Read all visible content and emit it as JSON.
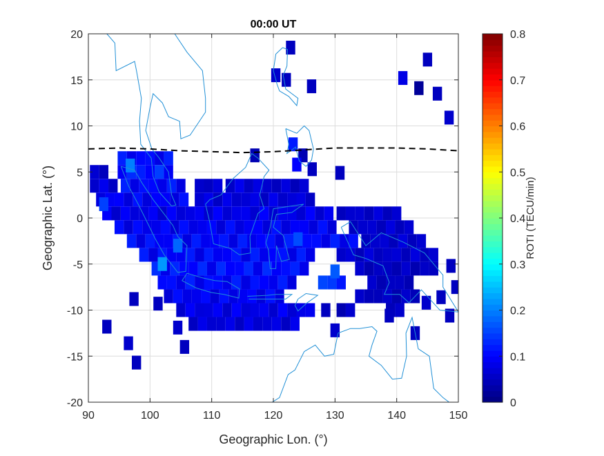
{
  "chart_data": {
    "type": "heatmap",
    "title": "00:00 UT",
    "xlabel": "Geographic Lon. (°)",
    "ylabel": "Geographic Lat. (°)",
    "xlim": [
      90,
      150
    ],
    "ylim": [
      -20,
      20
    ],
    "xticks": [
      90,
      100,
      110,
      120,
      130,
      140,
      150
    ],
    "yticks": [
      -20,
      -15,
      -10,
      -5,
      0,
      5,
      10,
      15,
      20
    ],
    "grid": true,
    "cell_size_deg": [
      1.5,
      1.5
    ],
    "colorbar": {
      "label": "ROTI (TECU/min)",
      "colormap": "jet",
      "range": [
        0,
        0.8
      ],
      "ticks": [
        0,
        0.1,
        0.2,
        0.3,
        0.4,
        0.5,
        0.6,
        0.7,
        0.8
      ],
      "location": "right"
    },
    "cell_runs": [
      {
        "lat": 6.5,
        "lon_from": 95.5,
        "lon_to": 103,
        "roti": 0.1
      },
      {
        "lat": 5,
        "lon_from": 91,
        "lon_to": 92.5,
        "roti": 0.06
      },
      {
        "lat": 5,
        "lon_from": 95.5,
        "lon_to": 104,
        "roti": 0.12
      },
      {
        "lat": 3.5,
        "lon_from": 91,
        "lon_to": 94,
        "roti": 0.07
      },
      {
        "lat": 3.5,
        "lon_from": 96,
        "lon_to": 105,
        "roti": 0.1
      },
      {
        "lat": 3.5,
        "lon_from": 108,
        "lon_to": 112,
        "roti": 0.06
      },
      {
        "lat": 3.5,
        "lon_from": 113,
        "lon_to": 117.5,
        "roti": 0.07
      },
      {
        "lat": 3.5,
        "lon_from": 119,
        "lon_to": 126,
        "roti": 0.06
      },
      {
        "lat": 2,
        "lon_from": 92,
        "lon_to": 106,
        "roti": 0.09
      },
      {
        "lat": 2,
        "lon_from": 108,
        "lon_to": 127,
        "roti": 0.07
      },
      {
        "lat": 0.5,
        "lon_from": 93,
        "lon_to": 130,
        "roti": 0.08
      },
      {
        "lat": 0.5,
        "lon_from": 131,
        "lon_to": 141,
        "roti": 0.06
      },
      {
        "lat": -1,
        "lon_from": 95,
        "lon_to": 130,
        "roti": 0.09
      },
      {
        "lat": -1,
        "lon_from": 133,
        "lon_to": 143,
        "roti": 0.06
      },
      {
        "lat": -2.5,
        "lon_from": 97,
        "lon_to": 133,
        "roti": 0.1
      },
      {
        "lat": -2.5,
        "lon_from": 135,
        "lon_to": 145,
        "roti": 0.06
      },
      {
        "lat": -4,
        "lon_from": 99,
        "lon_to": 127,
        "roti": 0.1
      },
      {
        "lat": -4,
        "lon_from": 131,
        "lon_to": 146,
        "roti": 0.06
      },
      {
        "lat": -5.5,
        "lon_from": 101,
        "lon_to": 125,
        "roti": 0.11
      },
      {
        "lat": -5.5,
        "lon_from": 134,
        "lon_to": 146,
        "roti": 0.05
      },
      {
        "lat": -7,
        "lon_from": 102,
        "lon_to": 123,
        "roti": 0.1
      },
      {
        "lat": -7,
        "lon_from": 128,
        "lon_to": 131,
        "roti": 0.14
      },
      {
        "lat": -7,
        "lon_from": 136,
        "lon_to": 143,
        "roti": 0.05
      },
      {
        "lat": -8.5,
        "lon_from": 103,
        "lon_to": 122,
        "roti": 0.09
      },
      {
        "lat": -8.5,
        "lon_from": 134,
        "lon_to": 144,
        "roti": 0.05
      },
      {
        "lat": -10,
        "lon_from": 105,
        "lon_to": 127,
        "roti": 0.08
      },
      {
        "lat": -10,
        "lon_from": 131,
        "lon_to": 133,
        "roti": 0.05
      },
      {
        "lat": -10,
        "lon_from": 139,
        "lon_to": 141,
        "roti": 0.05
      },
      {
        "lat": -11.5,
        "lon_from": 107,
        "lon_to": 124,
        "roti": 0.07
      }
    ],
    "cells": [
      {
        "lon": 122.8,
        "lat": 18.5,
        "roti": 0.05
      },
      {
        "lon": 120.4,
        "lat": 15.5,
        "roti": 0.06
      },
      {
        "lon": 122.1,
        "lat": 15.0,
        "roti": 0.05
      },
      {
        "lon": 126.2,
        "lat": 14.3,
        "roti": 0.05
      },
      {
        "lon": 145.0,
        "lat": 17.2,
        "roti": 0.05
      },
      {
        "lon": 141.0,
        "lat": 15.2,
        "roti": 0.08
      },
      {
        "lon": 143.6,
        "lat": 14.1,
        "roti": 0.02
      },
      {
        "lon": 146.6,
        "lat": 13.5,
        "roti": 0.05
      },
      {
        "lon": 148.5,
        "lat": 10.9,
        "roti": 0.06
      },
      {
        "lon": 123.2,
        "lat": 8.0,
        "roti": 0.12
      },
      {
        "lon": 117.0,
        "lat": 6.8,
        "roti": 0.04
      },
      {
        "lon": 124.8,
        "lat": 6.8,
        "roti": 0.04
      },
      {
        "lon": 126.3,
        "lat": 5.3,
        "roti": 0.05
      },
      {
        "lon": 130.8,
        "lat": 4.9,
        "roti": 0.05
      },
      {
        "lon": 123.8,
        "lat": 5.8,
        "roti": 0.1
      },
      {
        "lon": 97.4,
        "lat": -8.8,
        "roti": 0.05
      },
      {
        "lon": 101.3,
        "lat": -9.3,
        "roti": 0.05
      },
      {
        "lon": 93.0,
        "lat": -11.8,
        "roti": 0.05
      },
      {
        "lon": 96.5,
        "lat": -13.6,
        "roti": 0.06
      },
      {
        "lon": 97.8,
        "lat": -15.7,
        "roti": 0.05
      },
      {
        "lon": 104.5,
        "lat": -11.9,
        "roti": 0.06
      },
      {
        "lon": 105.6,
        "lat": -14.0,
        "roti": 0.05
      },
      {
        "lon": 128.5,
        "lat": -10.0,
        "roti": 0.05
      },
      {
        "lon": 130.0,
        "lat": -12.2,
        "roti": 0.06
      },
      {
        "lon": 143.0,
        "lat": -12.5,
        "roti": 0.05
      },
      {
        "lon": 148.8,
        "lat": -5.2,
        "roti": 0.05
      },
      {
        "lon": 149.6,
        "lat": -7.5,
        "roti": 0.05
      },
      {
        "lon": 147.2,
        "lat": -8.6,
        "roti": 0.05
      },
      {
        "lon": 148.6,
        "lat": -10.6,
        "roti": 0.05
      },
      {
        "lon": 144.8,
        "lat": -9.2,
        "roti": 0.06
      },
      {
        "lon": 138.8,
        "lat": -10.6,
        "roti": 0.05
      },
      {
        "lon": 102.0,
        "lat": -5.0,
        "roti": 0.22
      },
      {
        "lon": 96.8,
        "lat": 5.7,
        "roti": 0.2
      },
      {
        "lon": 130.0,
        "lat": -5.8,
        "roti": 0.17
      },
      {
        "lon": 124.0,
        "lat": -2.3,
        "roti": 0.16
      },
      {
        "lon": 104.5,
        "lat": -3.0,
        "roti": 0.18
      },
      {
        "lon": 92.5,
        "lat": 1.5,
        "roti": 0.15
      }
    ],
    "magnetic_equator": {
      "style": "dashed",
      "lon": [
        90,
        95,
        100,
        105,
        110,
        115,
        120,
        125,
        130,
        135,
        140,
        145,
        150
      ],
      "lat": [
        7.5,
        7.6,
        7.5,
        7.3,
        7.2,
        7.1,
        7.2,
        7.4,
        7.6,
        7.6,
        7.6,
        7.5,
        7.3
      ]
    },
    "coastlines": [
      [
        [
          104,
          20
        ],
        [
          106,
          18
        ],
        [
          108.5,
          16
        ],
        [
          109,
          13
        ],
        [
          109,
          11.5
        ],
        [
          106.5,
          9
        ],
        [
          105,
          8.6
        ],
        [
          104.8,
          10.5
        ],
        [
          103,
          11
        ],
        [
          102,
          12.5
        ],
        [
          100.5,
          13.5
        ],
        [
          100,
          12
        ],
        [
          99.3,
          9.5
        ],
        [
          100.3,
          7.5
        ],
        [
          101.5,
          6.5
        ],
        [
          103,
          5
        ],
        [
          103.5,
          2.5
        ],
        [
          104.2,
          1.4
        ],
        [
          103.5,
          1.3
        ],
        [
          101.5,
          2.8
        ],
        [
          100.5,
          4.5
        ],
        [
          100.2,
          6.5
        ],
        [
          98.5,
          8
        ],
        [
          98.3,
          10.5
        ],
        [
          98.6,
          13
        ],
        [
          97.8,
          16
        ],
        [
          97.5,
          17
        ],
        [
          94.5,
          16
        ],
        [
          94.3,
          19
        ],
        [
          93,
          20
        ]
      ],
      [
        [
          95.3,
          5.6
        ],
        [
          97.5,
          5.2
        ],
        [
          98.7,
          3.8
        ],
        [
          100.5,
          2
        ],
        [
          103.7,
          -0.8
        ],
        [
          104.5,
          -2
        ],
        [
          106,
          -3
        ],
        [
          105.8,
          -5.8
        ],
        [
          104.5,
          -5.9
        ],
        [
          102.3,
          -4
        ],
        [
          100.8,
          -2.2
        ],
        [
          99.2,
          0
        ],
        [
          98,
          1.6
        ],
        [
          96.5,
          3.5
        ],
        [
          95.3,
          5.6
        ]
      ],
      [
        [
          106,
          -6
        ],
        [
          108.5,
          -6.5
        ],
        [
          110.5,
          -6.8
        ],
        [
          112.5,
          -6.9
        ],
        [
          114.5,
          -7.7
        ],
        [
          114.4,
          -8.7
        ],
        [
          112,
          -8.3
        ],
        [
          110,
          -8.1
        ],
        [
          107.5,
          -7.6
        ],
        [
          105.2,
          -6.8
        ],
        [
          106,
          -6
        ]
      ],
      [
        [
          109,
          1.5
        ],
        [
          109.7,
          -0.5
        ],
        [
          110.3,
          -2.8
        ],
        [
          113,
          -3.3
        ],
        [
          114.5,
          -4
        ],
        [
          116.3,
          -3.8
        ],
        [
          116.2,
          -2
        ],
        [
          117.5,
          0.5
        ],
        [
          118.5,
          1
        ],
        [
          117.8,
          2.5
        ],
        [
          118.5,
          4.5
        ],
        [
          119.3,
          5.2
        ],
        [
          117.5,
          6.5
        ],
        [
          116.5,
          7
        ],
        [
          115.5,
          5.5
        ],
        [
          113.5,
          4.3
        ],
        [
          111.5,
          2.5
        ],
        [
          109.7,
          2
        ],
        [
          109,
          1.5
        ]
      ],
      [
        [
          120,
          1
        ],
        [
          124.9,
          1.5
        ],
        [
          123,
          0.6
        ],
        [
          120.5,
          0.4
        ],
        [
          120,
          -1
        ],
        [
          121.6,
          -1.9
        ],
        [
          122.6,
          -4.5
        ],
        [
          121.3,
          -4.7
        ],
        [
          120.5,
          -3
        ],
        [
          120.4,
          -5.5
        ],
        [
          119.5,
          -5.5
        ],
        [
          119.2,
          -3.5
        ],
        [
          118.8,
          -2.7
        ],
        [
          119.5,
          -1
        ],
        [
          120,
          1
        ]
      ],
      [
        [
          121.5,
          18.5
        ],
        [
          122.3,
          18.3
        ],
        [
          122.2,
          16.5
        ],
        [
          121.6,
          15.5
        ],
        [
          122,
          14
        ],
        [
          124,
          13
        ],
        [
          123.8,
          12.2
        ],
        [
          122.5,
          13.2
        ],
        [
          121,
          13.8
        ],
        [
          120.6,
          14.5
        ],
        [
          120,
          16
        ],
        [
          120.4,
          17.8
        ],
        [
          121.5,
          18.5
        ]
      ],
      [
        [
          122,
          9.7
        ],
        [
          123.8,
          9.2
        ],
        [
          125,
          10
        ],
        [
          125.8,
          9.5
        ],
        [
          126.5,
          7.5
        ],
        [
          126.2,
          6.3
        ],
        [
          125.3,
          5.6
        ],
        [
          124.2,
          6.2
        ],
        [
          123.6,
          7.7
        ],
        [
          122.2,
          7
        ],
        [
          122.5,
          8
        ],
        [
          122,
          9.7
        ]
      ],
      [
        [
          131,
          -1
        ],
        [
          132.5,
          -0.4
        ],
        [
          135,
          -3
        ],
        [
          137.5,
          -1.6
        ],
        [
          141,
          -2.6
        ],
        [
          144.5,
          -3.8
        ],
        [
          147.5,
          -6.2
        ],
        [
          147.5,
          -7.5
        ],
        [
          150,
          -10.2
        ],
        [
          147,
          -10
        ],
        [
          144,
          -7.8
        ],
        [
          142,
          -9.2
        ],
        [
          140.5,
          -8.3
        ],
        [
          138,
          -8.3
        ],
        [
          138.8,
          -7
        ],
        [
          137.8,
          -5.2
        ],
        [
          135,
          -4.4
        ],
        [
          133,
          -4
        ],
        [
          132,
          -2.5
        ],
        [
          131,
          -1
        ]
      ],
      [
        [
          119.8,
          -20
        ],
        [
          121,
          -19.5
        ],
        [
          122.4,
          -17
        ],
        [
          123.5,
          -16.5
        ],
        [
          125,
          -14.5
        ],
        [
          126.8,
          -13.8
        ],
        [
          128.3,
          -15
        ],
        [
          129.8,
          -14.8
        ],
        [
          130.5,
          -12.5
        ],
        [
          132.5,
          -12
        ],
        [
          134,
          -12
        ],
        [
          136,
          -11.8
        ],
        [
          136.8,
          -12.3
        ],
        [
          136,
          -13.8
        ],
        [
          135.5,
          -15
        ],
        [
          137.5,
          -16
        ],
        [
          139.3,
          -17.5
        ],
        [
          140.8,
          -17.4
        ],
        [
          141.6,
          -15
        ],
        [
          141.5,
          -12.5
        ],
        [
          142.5,
          -10.8
        ],
        [
          143.5,
          -14.2
        ],
        [
          145.3,
          -15
        ],
        [
          146,
          -18.5
        ],
        [
          147.5,
          -19.5
        ],
        [
          148.5,
          -20
        ]
      ],
      [
        [
          124,
          -8.8
        ],
        [
          125.3,
          -8.2
        ],
        [
          127.2,
          -8.4
        ],
        [
          125.5,
          -9.2
        ],
        [
          124,
          -10.1
        ],
        [
          123.5,
          -9.5
        ],
        [
          124,
          -8.8
        ]
      ],
      [
        [
          115.8,
          -8.5
        ],
        [
          119,
          -8.4
        ],
        [
          120.5,
          -8.3
        ],
        [
          123,
          -8.3
        ],
        [
          122,
          -8.8
        ],
        [
          119,
          -8.8
        ],
        [
          116,
          -8.8
        ]
      ]
    ]
  }
}
